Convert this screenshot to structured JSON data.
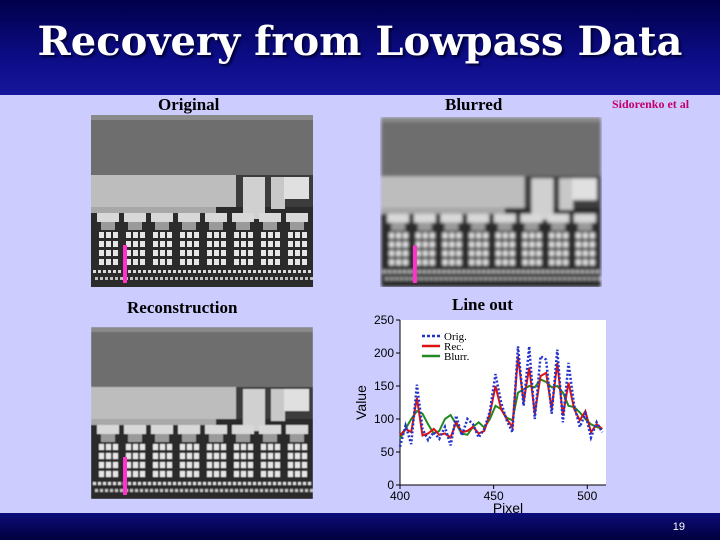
{
  "slide": {
    "title": "Recovery from Lowpass Data",
    "credit": "Sidorenko et al",
    "page_number": "19",
    "labels": {
      "original": "Original",
      "blurred": "Blurred",
      "reconstruction": "Reconstruction",
      "lineout": "Line out"
    }
  },
  "colors": {
    "title_bar": "#0c0c86",
    "background": "#ccccff",
    "credit": "#c4006a",
    "marker": "#ff33cc",
    "orig_series": "#2233cc",
    "rec_series": "#dd1111",
    "blurr_series": "#228822"
  },
  "chart_data": {
    "type": "line",
    "title": "",
    "xlabel": "Pixel",
    "ylabel": "Value",
    "xlim": [
      400,
      510
    ],
    "ylim": [
      0,
      250
    ],
    "xticks": [
      400,
      450,
      500
    ],
    "yticks": [
      0,
      50,
      100,
      150,
      200,
      250
    ],
    "legend_position": "top-left",
    "grid": false,
    "series": [
      {
        "name": "Orig.",
        "color": "#2233cc",
        "style": "dotted",
        "x": [
          400,
          403,
          406,
          409,
          412,
          415,
          418,
          421,
          424,
          427,
          430,
          433,
          436,
          439,
          442,
          445,
          448,
          451,
          454,
          457,
          460,
          463,
          466,
          469,
          472,
          475,
          478,
          481,
          484,
          487,
          490,
          493,
          496,
          499,
          502,
          505,
          508
        ],
        "y": [
          58,
          90,
          62,
          152,
          85,
          68,
          80,
          70,
          88,
          60,
          105,
          75,
          100,
          92,
          72,
          85,
          112,
          168,
          125,
          98,
          80,
          210,
          120,
          210,
          100,
          195,
          190,
          108,
          205,
          95,
          185,
          120,
          88,
          108,
          72,
          95,
          80
        ]
      },
      {
        "name": "Rec.",
        "color": "#dd1111",
        "style": "solid",
        "x": [
          400,
          403,
          406,
          409,
          412,
          415,
          418,
          421,
          424,
          427,
          430,
          433,
          436,
          439,
          442,
          445,
          448,
          451,
          454,
          457,
          460,
          463,
          466,
          469,
          472,
          475,
          478,
          481,
          484,
          487,
          490,
          493,
          496,
          499,
          502,
          505,
          508
        ],
        "y": [
          75,
          85,
          80,
          132,
          75,
          78,
          85,
          76,
          78,
          72,
          95,
          80,
          82,
          88,
          78,
          82,
          108,
          150,
          115,
          100,
          88,
          195,
          125,
          178,
          108,
          165,
          170,
          115,
          185,
          105,
          155,
          115,
          98,
          112,
          80,
          92,
          85
        ]
      },
      {
        "name": "Blurr.",
        "color": "#228822",
        "style": "solid",
        "x": [
          400,
          403,
          406,
          409,
          412,
          415,
          418,
          421,
          424,
          427,
          430,
          433,
          436,
          439,
          442,
          445,
          448,
          451,
          454,
          457,
          460,
          463,
          466,
          469,
          472,
          475,
          478,
          481,
          484,
          487,
          490,
          493,
          496,
          499,
          502,
          505,
          508
        ],
        "y": [
          70,
          85,
          100,
          112,
          108,
          92,
          78,
          82,
          100,
          106,
          92,
          78,
          76,
          88,
          95,
          87,
          100,
          120,
          115,
          102,
          98,
          140,
          145,
          150,
          148,
          160,
          156,
          148,
          150,
          140,
          120,
          118,
          110,
          100,
          92,
          88,
          85
        ]
      }
    ]
  }
}
